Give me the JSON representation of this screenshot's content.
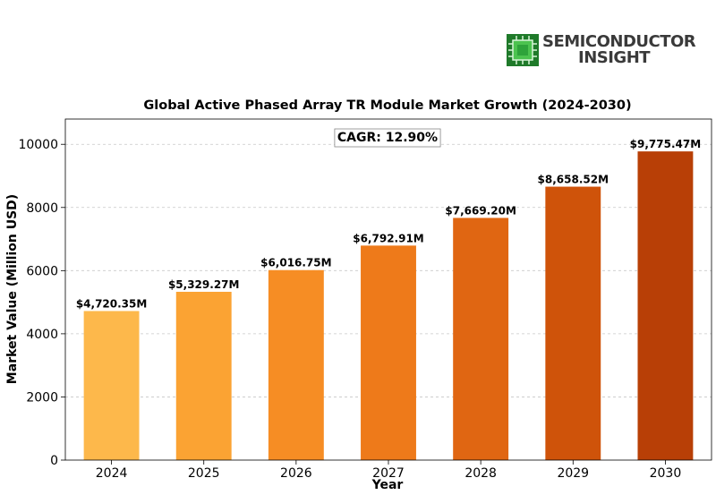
{
  "brand": {
    "line1": "SEMICONDUCTOR",
    "line2": "INSIGHT",
    "icon": "chip-icon",
    "colors": {
      "mark_dark": "#1f7a2a",
      "mark_light": "#4cc34f",
      "text": "#3a3a3a"
    }
  },
  "chart_data": {
    "type": "bar",
    "title": "Global Active Phased Array TR Module Market Growth (2024-2030)",
    "xlabel": "Year",
    "ylabel": "Market Value (Million USD)",
    "categories": [
      "2024",
      "2025",
      "2026",
      "2027",
      "2028",
      "2029",
      "2030"
    ],
    "values": [
      4720.35,
      5329.27,
      6016.75,
      6792.91,
      7669.2,
      8658.52,
      9775.47
    ],
    "value_labels": [
      "$4,720.35M",
      "$5,329.27M",
      "$6,016.75M",
      "$6,792.91M",
      "$7,669.20M",
      "$8,658.52M",
      "$9,775.47M"
    ],
    "ylim": [
      0,
      10800
    ],
    "yticks": [
      0,
      2000,
      4000,
      6000,
      8000,
      10000
    ],
    "annotation": "CAGR: 12.90%",
    "grid": "y-dashed",
    "bar_colors": [
      "#fdb84b",
      "#fba333",
      "#f68d24",
      "#ee7a1a",
      "#e06612",
      "#cf530a",
      "#b83f06"
    ]
  }
}
